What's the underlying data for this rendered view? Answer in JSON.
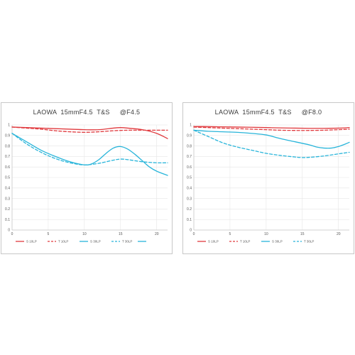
{
  "chart_data": [
    {
      "type": "line",
      "title": "LAOWA  15mmF4.5  T&S     @F4.5",
      "xlim": [
        0,
        21.5
      ],
      "ylim": [
        0,
        1
      ],
      "xticks": [
        "0",
        "5",
        "10",
        "15",
        "20"
      ],
      "yticks": [
        "0",
        "0.1",
        "0.2",
        "0.3",
        "0.4",
        "0.5",
        "0.6",
        "0.7",
        "0.8",
        "0.9",
        "1"
      ],
      "grid": true,
      "legend_position": "bottom",
      "series": [
        {
          "name": "S 10LP",
          "color": "#e03a3e",
          "dash": false,
          "x": [
            0,
            2,
            4,
            6,
            8,
            10,
            12,
            14,
            15,
            16,
            18,
            20,
            21.5
          ],
          "y": [
            0.98,
            0.975,
            0.97,
            0.965,
            0.96,
            0.955,
            0.955,
            0.97,
            0.975,
            0.97,
            0.955,
            0.92,
            0.87
          ]
        },
        {
          "name": "T 10LP",
          "color": "#e03a3e",
          "dash": true,
          "x": [
            0,
            2,
            4,
            6,
            8,
            10,
            12,
            14,
            16,
            18,
            20,
            21.5
          ],
          "y": [
            0.98,
            0.97,
            0.96,
            0.945,
            0.935,
            0.93,
            0.935,
            0.945,
            0.95,
            0.95,
            0.95,
            0.95
          ]
        },
        {
          "name": "S 30LP",
          "color": "#29b5da",
          "dash": false,
          "x": [
            0,
            2,
            4,
            6,
            8,
            10,
            11,
            12,
            13,
            14,
            15,
            16,
            17,
            18,
            19,
            20,
            21.5
          ],
          "y": [
            0.92,
            0.84,
            0.76,
            0.7,
            0.65,
            0.62,
            0.63,
            0.67,
            0.73,
            0.78,
            0.795,
            0.77,
            0.72,
            0.66,
            0.6,
            0.56,
            0.52
          ]
        },
        {
          "name": "T 30LP",
          "color": "#29b5da",
          "dash": true,
          "x": [
            0,
            2,
            4,
            6,
            8,
            10,
            12,
            14,
            15,
            16,
            18,
            20,
            21.5
          ],
          "y": [
            0.92,
            0.82,
            0.74,
            0.68,
            0.64,
            0.62,
            0.635,
            0.665,
            0.675,
            0.67,
            0.65,
            0.64,
            0.64
          ]
        }
      ],
      "legend_extra_line": "#29b5da"
    },
    {
      "type": "line",
      "title": "LAOWA  15mmF4.5  T&S     @F8.0",
      "xlim": [
        0,
        21.5
      ],
      "ylim": [
        0,
        1
      ],
      "xticks": [
        "0",
        "5",
        "10",
        "15",
        "20"
      ],
      "yticks": [
        "0",
        "0.1",
        "0.2",
        "0.3",
        "0.4",
        "0.5",
        "0.6",
        "0.7",
        "0.8",
        "0.9",
        "1"
      ],
      "grid": true,
      "legend_position": "bottom",
      "series": [
        {
          "name": "S 10LP",
          "color": "#e03a3e",
          "dash": false,
          "x": [
            0,
            2,
            4,
            6,
            8,
            10,
            12,
            14,
            16,
            18,
            20,
            21.5
          ],
          "y": [
            0.985,
            0.985,
            0.982,
            0.98,
            0.978,
            0.975,
            0.972,
            0.97,
            0.968,
            0.968,
            0.97,
            0.975
          ]
        },
        {
          "name": "T 10LP",
          "color": "#e03a3e",
          "dash": true,
          "x": [
            0,
            2,
            4,
            6,
            8,
            10,
            12,
            14,
            16,
            18,
            20,
            21.5
          ],
          "y": [
            0.98,
            0.975,
            0.97,
            0.965,
            0.96,
            0.955,
            0.95,
            0.948,
            0.948,
            0.95,
            0.955,
            0.96
          ]
        },
        {
          "name": "S 30LP",
          "color": "#29b5da",
          "dash": false,
          "x": [
            0,
            2,
            4,
            6,
            8,
            10,
            12,
            14,
            16,
            17,
            18,
            19,
            20,
            21,
            21.5
          ],
          "y": [
            0.95,
            0.94,
            0.935,
            0.93,
            0.92,
            0.905,
            0.87,
            0.84,
            0.81,
            0.79,
            0.78,
            0.78,
            0.795,
            0.82,
            0.835
          ]
        },
        {
          "name": "T 30LP",
          "color": "#29b5da",
          "dash": true,
          "x": [
            0,
            2,
            4,
            6,
            8,
            10,
            12,
            14,
            15,
            16,
            18,
            20,
            21.5
          ],
          "y": [
            0.95,
            0.89,
            0.83,
            0.79,
            0.76,
            0.73,
            0.71,
            0.695,
            0.69,
            0.692,
            0.705,
            0.725,
            0.74
          ]
        }
      ]
    }
  ]
}
